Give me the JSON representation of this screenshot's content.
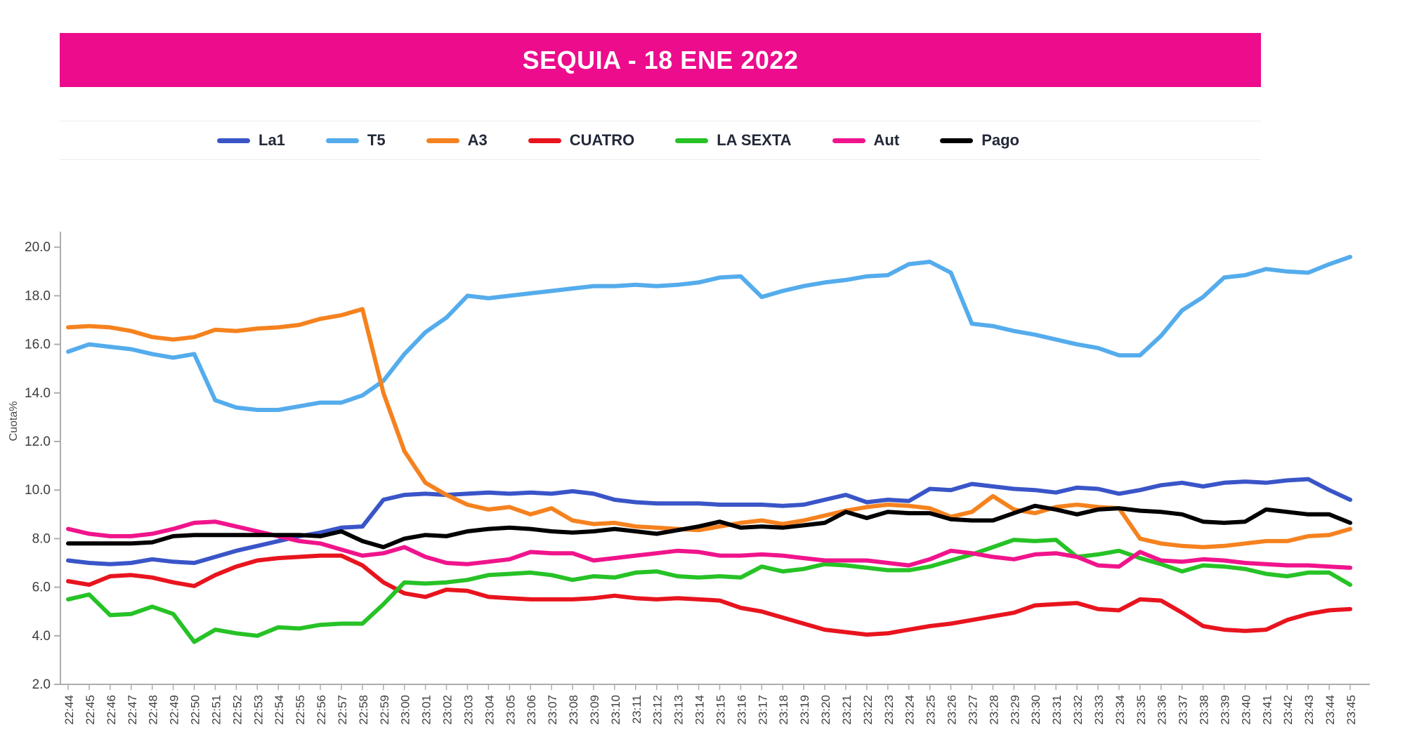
{
  "header": {
    "title": "SEQUIA - 18 ENE 2022",
    "banner_color": "#EC0C8C"
  },
  "legend": {
    "items": [
      {
        "label": "La1",
        "color": "#3A55C8"
      },
      {
        "label": "T5",
        "color": "#54ACEC"
      },
      {
        "label": "A3",
        "color": "#F5821F"
      },
      {
        "label": "CUATRO",
        "color": "#E8141E"
      },
      {
        "label": "LA SEXTA",
        "color": "#26C226"
      },
      {
        "label": "Aut",
        "color": "#F0148C"
      },
      {
        "label": "Pago",
        "color": "#000000"
      }
    ]
  },
  "chart_data": {
    "type": "line",
    "title": "SEQUIA - 18 ENE 2022",
    "xlabel": "",
    "ylabel": "Cuota%",
    "ylim": [
      2,
      20
    ],
    "yticks": [
      2,
      4,
      6,
      8,
      10,
      12,
      14,
      16,
      18,
      20
    ],
    "grid": false,
    "legend_position": "top",
    "axis_color": "#ADADAD",
    "tick_label_color": "#3D3D3D",
    "x": [
      "22:44",
      "22:45",
      "22:46",
      "22:47",
      "22:48",
      "22:49",
      "22:50",
      "22:51",
      "22:52",
      "22:53",
      "22:54",
      "22:55",
      "22:56",
      "22:57",
      "22:58",
      "22:59",
      "23:00",
      "23:01",
      "23:02",
      "23:03",
      "23:04",
      "23:05",
      "23:06",
      "23:07",
      "23:08",
      "23:09",
      "23:10",
      "23:11",
      "23:12",
      "23:13",
      "23:14",
      "23:15",
      "23:16",
      "23:17",
      "23:18",
      "23:19",
      "23:20",
      "23:21",
      "23:22",
      "23:23",
      "23:24",
      "23:25",
      "23:26",
      "23:27",
      "23:28",
      "23:29",
      "23:30",
      "23:31",
      "23:32",
      "23:33",
      "23:34",
      "23:35",
      "23:36",
      "23:37",
      "23:38",
      "23:39",
      "23:40",
      "23:41",
      "23:42",
      "23:43",
      "23:44",
      "23:45"
    ],
    "series": [
      {
        "name": "La1",
        "color": "#3A55C8",
        "values": [
          7.1,
          7.0,
          6.95,
          7.0,
          7.15,
          7.05,
          7.0,
          7.25,
          7.5,
          7.7,
          7.9,
          8.1,
          8.25,
          8.45,
          8.5,
          9.6,
          9.8,
          9.85,
          9.8,
          9.85,
          9.9,
          9.85,
          9.9,
          9.85,
          9.95,
          9.85,
          9.6,
          9.5,
          9.45,
          9.45,
          9.45,
          9.4,
          9.4,
          9.4,
          9.35,
          9.4,
          9.6,
          9.8,
          9.5,
          9.6,
          9.55,
          10.05,
          10.0,
          10.25,
          10.15,
          10.05,
          10.0,
          9.9,
          10.1,
          10.05,
          9.85,
          10.0,
          10.2,
          10.3,
          10.15,
          10.3,
          10.35,
          10.3,
          10.4,
          10.45,
          10.0,
          9.6
        ]
      },
      {
        "name": "T5",
        "color": "#54ACEC",
        "values": [
          15.7,
          16.0,
          15.9,
          15.8,
          15.6,
          15.45,
          15.6,
          13.7,
          13.4,
          13.3,
          13.3,
          13.45,
          13.6,
          13.6,
          13.9,
          14.5,
          15.6,
          16.5,
          17.1,
          18.0,
          17.9,
          18.0,
          18.1,
          18.2,
          18.3,
          18.4,
          18.4,
          18.45,
          18.4,
          18.45,
          18.55,
          18.75,
          18.8,
          17.95,
          18.2,
          18.4,
          18.55,
          18.65,
          18.8,
          18.85,
          19.3,
          19.4,
          18.95,
          16.85,
          16.75,
          16.55,
          16.4,
          16.2,
          16.0,
          15.85,
          15.55,
          15.55,
          16.35,
          17.4,
          17.95,
          18.75,
          18.85,
          19.1,
          19.0,
          18.95,
          19.3,
          19.6
        ]
      },
      {
        "name": "A3",
        "color": "#F5821F",
        "values": [
          16.7,
          16.75,
          16.7,
          16.55,
          16.3,
          16.2,
          16.3,
          16.6,
          16.55,
          16.65,
          16.7,
          16.8,
          17.05,
          17.2,
          17.45,
          14.0,
          11.6,
          10.3,
          9.8,
          9.4,
          9.2,
          9.3,
          9.0,
          9.25,
          8.75,
          8.6,
          8.65,
          8.5,
          8.45,
          8.4,
          8.35,
          8.5,
          8.65,
          8.75,
          8.6,
          8.75,
          8.95,
          9.15,
          9.3,
          9.4,
          9.35,
          9.25,
          8.9,
          9.1,
          9.75,
          9.2,
          9.05,
          9.3,
          9.4,
          9.3,
          9.25,
          8.0,
          7.8,
          7.7,
          7.65,
          7.7,
          7.8,
          7.9,
          7.9,
          8.1,
          8.15,
          8.4
        ]
      },
      {
        "name": "CUATRO",
        "color": "#E8141E",
        "values": [
          6.25,
          6.1,
          6.45,
          6.5,
          6.4,
          6.2,
          6.05,
          6.5,
          6.85,
          7.1,
          7.2,
          7.25,
          7.3,
          7.3,
          6.9,
          6.2,
          5.75,
          5.6,
          5.9,
          5.85,
          5.6,
          5.55,
          5.5,
          5.5,
          5.5,
          5.55,
          5.65,
          5.55,
          5.5,
          5.55,
          5.5,
          5.45,
          5.15,
          5.0,
          4.75,
          4.5,
          4.25,
          4.15,
          4.05,
          4.1,
          4.25,
          4.4,
          4.5,
          4.65,
          4.8,
          4.95,
          5.25,
          5.3,
          5.35,
          5.1,
          5.05,
          5.5,
          5.45,
          4.95,
          4.4,
          4.25,
          4.2,
          4.25,
          4.65,
          4.9,
          5.05,
          5.1
        ]
      },
      {
        "name": "LA SEXTA",
        "color": "#26C226",
        "values": [
          5.5,
          5.7,
          4.85,
          4.9,
          5.2,
          4.9,
          3.75,
          4.25,
          4.1,
          4.0,
          4.35,
          4.3,
          4.45,
          4.5,
          4.5,
          5.3,
          6.2,
          6.15,
          6.2,
          6.3,
          6.5,
          6.55,
          6.6,
          6.5,
          6.3,
          6.45,
          6.4,
          6.6,
          6.65,
          6.45,
          6.4,
          6.45,
          6.4,
          6.85,
          6.65,
          6.75,
          6.95,
          6.9,
          6.8,
          6.7,
          6.7,
          6.85,
          7.1,
          7.35,
          7.65,
          7.95,
          7.9,
          7.95,
          7.25,
          7.35,
          7.5,
          7.2,
          6.95,
          6.65,
          6.9,
          6.85,
          6.75,
          6.55,
          6.45,
          6.6,
          6.6,
          6.1
        ]
      },
      {
        "name": "Aut",
        "color": "#F0148C",
        "values": [
          8.4,
          8.2,
          8.1,
          8.1,
          8.2,
          8.4,
          8.65,
          8.7,
          8.5,
          8.3,
          8.1,
          7.9,
          7.8,
          7.55,
          7.3,
          7.4,
          7.65,
          7.25,
          7.0,
          6.95,
          7.05,
          7.15,
          7.45,
          7.4,
          7.4,
          7.1,
          7.2,
          7.3,
          7.4,
          7.5,
          7.45,
          7.3,
          7.3,
          7.35,
          7.3,
          7.2,
          7.1,
          7.1,
          7.1,
          7.0,
          6.9,
          7.15,
          7.5,
          7.4,
          7.25,
          7.15,
          7.35,
          7.4,
          7.25,
          6.9,
          6.85,
          7.45,
          7.1,
          7.05,
          7.15,
          7.1,
          7.0,
          6.95,
          6.9,
          6.9,
          6.85,
          6.8
        ]
      },
      {
        "name": "Pago",
        "color": "#000000",
        "values": [
          7.8,
          7.8,
          7.8,
          7.8,
          7.85,
          8.1,
          8.15,
          8.15,
          8.15,
          8.15,
          8.15,
          8.15,
          8.1,
          8.3,
          7.9,
          7.65,
          8.0,
          8.15,
          8.1,
          8.3,
          8.4,
          8.45,
          8.4,
          8.3,
          8.25,
          8.3,
          8.4,
          8.3,
          8.2,
          8.35,
          8.5,
          8.7,
          8.45,
          8.5,
          8.45,
          8.55,
          8.65,
          9.1,
          8.85,
          9.1,
          9.05,
          9.05,
          8.8,
          8.75,
          8.75,
          9.05,
          9.35,
          9.2,
          9.0,
          9.2,
          9.25,
          9.15,
          9.1,
          9.0,
          8.7,
          8.65,
          8.7,
          9.2,
          9.1,
          9.0,
          9.0,
          8.65
        ]
      }
    ]
  }
}
